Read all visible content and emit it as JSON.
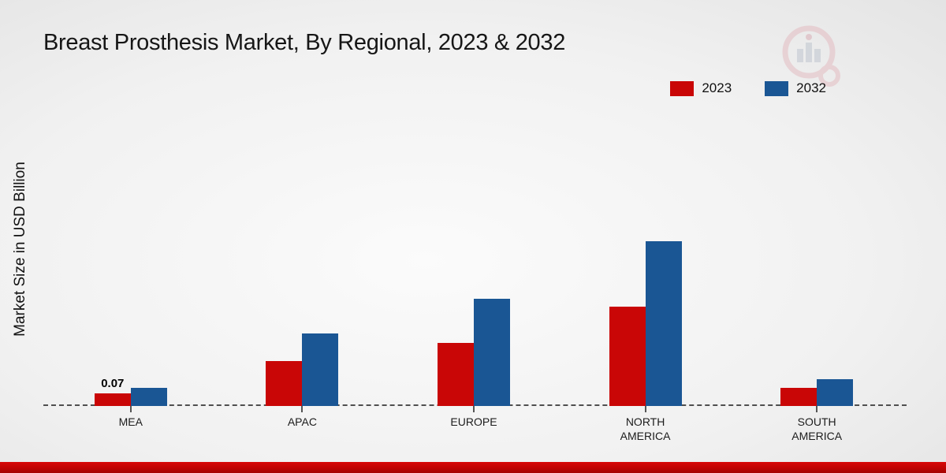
{
  "title": "Breast Prosthesis Market, By Regional, 2023 & 2032",
  "legend": {
    "items": [
      {
        "label": "2023",
        "color": "#c90606"
      },
      {
        "label": "2032",
        "color": "#1a5694"
      }
    ]
  },
  "chart_data": {
    "type": "bar",
    "title": "Breast Prosthesis Market, By Regional, 2023 & 2032",
    "xlabel": "",
    "ylabel": "Market Size in USD Billion",
    "categories": [
      "MEA",
      "APAC",
      "EUROPE",
      "NORTH AMERICA",
      "SOUTH AMERICA"
    ],
    "series": [
      {
        "name": "2023",
        "color": "#c90606",
        "values": [
          0.07,
          0.25,
          0.35,
          0.55,
          0.1
        ]
      },
      {
        "name": "2032",
        "color": "#1a5694",
        "values": [
          0.1,
          0.4,
          0.59,
          0.91,
          0.15
        ]
      }
    ],
    "annotations": [
      {
        "category": "MEA",
        "series": "2023",
        "text": "0.07"
      }
    ],
    "ylim": [
      0,
      1.0
    ],
    "grid": false,
    "legend_position": "top-right",
    "baseline_style": "dashed"
  }
}
